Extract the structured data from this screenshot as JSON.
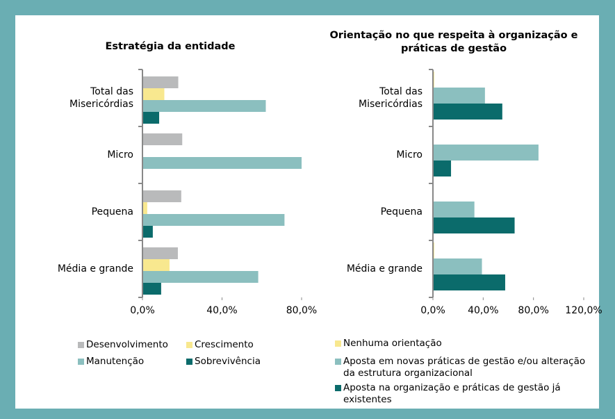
{
  "chart_data": [
    {
      "type": "bar",
      "orientation": "horizontal",
      "title": "Estratégia da entidade",
      "categories": [
        "Total das Misericórdias",
        "Micro",
        "Pequena",
        "Média e grande"
      ],
      "series": [
        {
          "name": "Desenvolvimento",
          "color": "#b9babb",
          "values": [
            18,
            20,
            19.5,
            17.8
          ]
        },
        {
          "name": "Crescimento",
          "color": "#f8e88f",
          "values": [
            11,
            0,
            2.4,
            13.6
          ]
        },
        {
          "name": "Manutenção",
          "color": "#8bbfbf",
          "values": [
            62,
            80,
            71.4,
            58.2
          ]
        },
        {
          "name": "Sobrevivência",
          "color": "#0b6b6b",
          "values": [
            8.4,
            0,
            5.2,
            9.4
          ]
        }
      ],
      "xlim": [
        0,
        80
      ],
      "xticks": [
        {
          "value": 0,
          "label": "0,0%"
        },
        {
          "value": 40,
          "label": "40,0%"
        },
        {
          "value": 80,
          "label": "80,0%"
        }
      ],
      "legend": "bottom"
    },
    {
      "type": "bar",
      "orientation": "horizontal",
      "title": "Orientação no que respeita à organização e práticas de gestão",
      "categories": [
        "Total das Misericórdias",
        "Micro",
        "Pequena",
        "Média e grande"
      ],
      "series": [
        {
          "name": "Nenhuma orientação",
          "color": "#f8e88f",
          "values": [
            1,
            0,
            0,
            1
          ]
        },
        {
          "name": "Aposta em novas práticas de gestão e/ou alteração da estrutura organizacional",
          "color": "#8bbfbf",
          "values": [
            41.4,
            84,
            33,
            39
          ]
        },
        {
          "name": "Aposta na organização e práticas de gestão já existentes",
          "color": "#0b6b6b",
          "values": [
            55.2,
            14.4,
            65,
            57.5
          ]
        }
      ],
      "xlim": [
        0,
        120
      ],
      "xticks": [
        {
          "value": 0,
          "label": "0,0%"
        },
        {
          "value": 40,
          "label": "40,0%"
        },
        {
          "value": 80,
          "label": "80,0%"
        },
        {
          "value": 120,
          "label": "120,0%"
        }
      ],
      "legend": "bottom"
    }
  ]
}
